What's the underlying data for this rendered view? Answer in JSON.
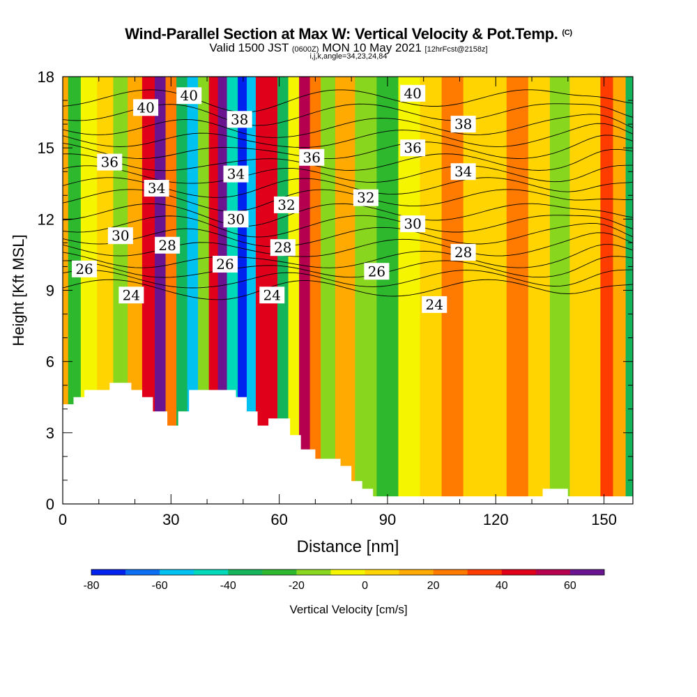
{
  "header": {
    "title": "Wind-Parallel Section at Max W: Vertical Velocity & Pot.Temp.",
    "copyright": "(C)",
    "valid_prefix": "Valid 1500 JST",
    "valid_utc": "(0600Z)",
    "valid_date": "MON 10 May 2021",
    "forecast": "[12hrFcst@2158z]",
    "indices": "i,j,k,angle=34,23,24,84"
  },
  "chart_data": {
    "type": "heatmap",
    "xlabel": "Distance [nm]",
    "ylabel": "Height [Kft MSL]",
    "xlim": [
      0,
      158
    ],
    "ylim": [
      0,
      18
    ],
    "x_ticks": [
      0,
      30,
      60,
      90,
      120,
      150
    ],
    "y_ticks": [
      0,
      3,
      6,
      9,
      12,
      15,
      18
    ],
    "colorbar": {
      "label": "Vertical Velocity [cm/s]",
      "bounds": [
        -80,
        -70,
        -60,
        -50,
        -40,
        -30,
        -20,
        -10,
        0,
        10,
        20,
        30,
        40,
        50,
        60,
        70
      ],
      "tick_values": [
        -80,
        -60,
        -40,
        -20,
        0,
        20,
        40,
        60
      ],
      "colors": [
        "#0022ee",
        "#0a6ff0",
        "#00c2f0",
        "#00d9b8",
        "#14b45a",
        "#2eb82e",
        "#88d61e",
        "#f5f500",
        "#ffd400",
        "#ffaa00",
        "#ff7b00",
        "#ff3c00",
        "#e0001a",
        "#b4004e",
        "#6a1490"
      ]
    },
    "vertical_velocity_columns": [
      {
        "x": 0,
        "w": 10
      },
      {
        "x": 3,
        "w": -30
      },
      {
        "x": 7,
        "w": -10
      },
      {
        "x": 12,
        "w": 8
      },
      {
        "x": 16,
        "w": -12
      },
      {
        "x": 20,
        "w": 12
      },
      {
        "x": 24,
        "w": 45
      },
      {
        "x": 27,
        "w": 62
      },
      {
        "x": 30,
        "w": 25
      },
      {
        "x": 33,
        "w": -40
      },
      {
        "x": 36,
        "w": -55
      },
      {
        "x": 39,
        "w": -20
      },
      {
        "x": 42,
        "w": 40
      },
      {
        "x": 44,
        "w": 65
      },
      {
        "x": 47,
        "w": -50
      },
      {
        "x": 50,
        "w": -75
      },
      {
        "x": 52,
        "w": -60
      },
      {
        "x": 55,
        "w": 40
      },
      {
        "x": 58,
        "w": 48
      },
      {
        "x": 61,
        "w": -40
      },
      {
        "x": 64,
        "w": -10
      },
      {
        "x": 67,
        "w": 55
      },
      {
        "x": 70,
        "w": 25
      },
      {
        "x": 73,
        "w": -15
      },
      {
        "x": 78,
        "w": 10
      },
      {
        "x": 84,
        "w": -15
      },
      {
        "x": 90,
        "w": -25
      },
      {
        "x": 96,
        "w": -5
      },
      {
        "x": 102,
        "w": 8
      },
      {
        "x": 108,
        "w": 20
      },
      {
        "x": 114,
        "w": 8
      },
      {
        "x": 120,
        "w": 5
      },
      {
        "x": 126,
        "w": 20
      },
      {
        "x": 132,
        "w": 8
      },
      {
        "x": 138,
        "w": -15
      },
      {
        "x": 143,
        "w": 5
      },
      {
        "x": 147,
        "w": 5
      },
      {
        "x": 151,
        "w": 30
      },
      {
        "x": 154,
        "w": 10
      },
      {
        "x": 158,
        "w": -35
      }
    ],
    "potential_temperature_contours": [
      {
        "value": 24,
        "height": 9.1
      },
      {
        "value": 25,
        "height": 9.5
      },
      {
        "value": 26,
        "height": 9.9
      },
      {
        "value": 27,
        "height": 10.3
      },
      {
        "value": 28,
        "height": 10.8
      },
      {
        "value": 29,
        "height": 11.3
      },
      {
        "value": 30,
        "height": 11.8
      },
      {
        "value": 31,
        "height": 12.3
      },
      {
        "value": 32,
        "height": 12.9
      },
      {
        "value": 33,
        "height": 13.4
      },
      {
        "value": 34,
        "height": 13.9
      },
      {
        "value": 35,
        "height": 14.4
      },
      {
        "value": 36,
        "height": 14.9
      },
      {
        "value": 37,
        "height": 15.4
      },
      {
        "value": 38,
        "height": 15.9
      },
      {
        "value": 39,
        "height": 16.5
      },
      {
        "value": 40,
        "height": 17.1
      }
    ],
    "contour_labels": [
      {
        "text": "40",
        "x": 23,
        "y": 16.7
      },
      {
        "text": "40",
        "x": 35,
        "y": 17.2
      },
      {
        "text": "38",
        "x": 49,
        "y": 16.2
      },
      {
        "text": "36",
        "x": 69,
        "y": 14.6
      },
      {
        "text": "40",
        "x": 97,
        "y": 17.3
      },
      {
        "text": "38",
        "x": 111,
        "y": 16.0
      },
      {
        "text": "36",
        "x": 97,
        "y": 15.0
      },
      {
        "text": "34",
        "x": 111,
        "y": 14.0
      },
      {
        "text": "36",
        "x": 13,
        "y": 14.4
      },
      {
        "text": "34",
        "x": 26,
        "y": 13.3
      },
      {
        "text": "34",
        "x": 48,
        "y": 13.9
      },
      {
        "text": "32",
        "x": 62,
        "y": 12.6
      },
      {
        "text": "32",
        "x": 84,
        "y": 12.9
      },
      {
        "text": "30",
        "x": 48,
        "y": 12.0
      },
      {
        "text": "30",
        "x": 16,
        "y": 11.3
      },
      {
        "text": "30",
        "x": 97,
        "y": 11.8
      },
      {
        "text": "28",
        "x": 29,
        "y": 10.9
      },
      {
        "text": "28",
        "x": 61,
        "y": 10.8
      },
      {
        "text": "28",
        "x": 111,
        "y": 10.6
      },
      {
        "text": "26",
        "x": 6,
        "y": 9.9
      },
      {
        "text": "26",
        "x": 45,
        "y": 10.1
      },
      {
        "text": "26",
        "x": 87,
        "y": 9.8
      },
      {
        "text": "24",
        "x": 19,
        "y": 8.8
      },
      {
        "text": "24",
        "x": 58,
        "y": 8.8
      },
      {
        "text": "24",
        "x": 103,
        "y": 8.4
      }
    ],
    "terrain": [
      [
        0,
        4.2
      ],
      [
        3,
        4.2
      ],
      [
        3,
        4.5
      ],
      [
        6,
        4.5
      ],
      [
        6,
        4.8
      ],
      [
        13,
        4.8
      ],
      [
        13,
        5.1
      ],
      [
        19,
        5.1
      ],
      [
        19,
        4.8
      ],
      [
        22,
        4.8
      ],
      [
        22,
        4.5
      ],
      [
        25,
        4.5
      ],
      [
        25,
        3.9
      ],
      [
        29,
        3.9
      ],
      [
        29,
        3.3
      ],
      [
        32,
        3.3
      ],
      [
        32,
        3.9
      ],
      [
        35,
        3.9
      ],
      [
        35,
        4.8
      ],
      [
        48,
        4.8
      ],
      [
        48,
        4.5
      ],
      [
        51,
        4.5
      ],
      [
        51,
        3.9
      ],
      [
        54,
        3.9
      ],
      [
        54,
        3.3
      ],
      [
        57,
        3.3
      ],
      [
        57,
        3.6
      ],
      [
        63,
        3.6
      ],
      [
        63,
        2.9
      ],
      [
        66,
        2.9
      ],
      [
        66,
        2.3
      ],
      [
        70,
        2.3
      ],
      [
        70,
        1.9
      ],
      [
        77,
        1.9
      ],
      [
        77,
        1.6
      ],
      [
        80,
        1.6
      ],
      [
        80,
        0.96
      ],
      [
        83,
        0.96
      ],
      [
        83,
        0.64
      ],
      [
        86,
        0.64
      ],
      [
        86,
        0.32
      ],
      [
        133,
        0.32
      ],
      [
        133,
        0.64
      ],
      [
        140,
        0.64
      ],
      [
        140,
        0.32
      ],
      [
        158,
        0.32
      ],
      [
        158,
        0
      ],
      [
        0,
        0
      ]
    ]
  }
}
